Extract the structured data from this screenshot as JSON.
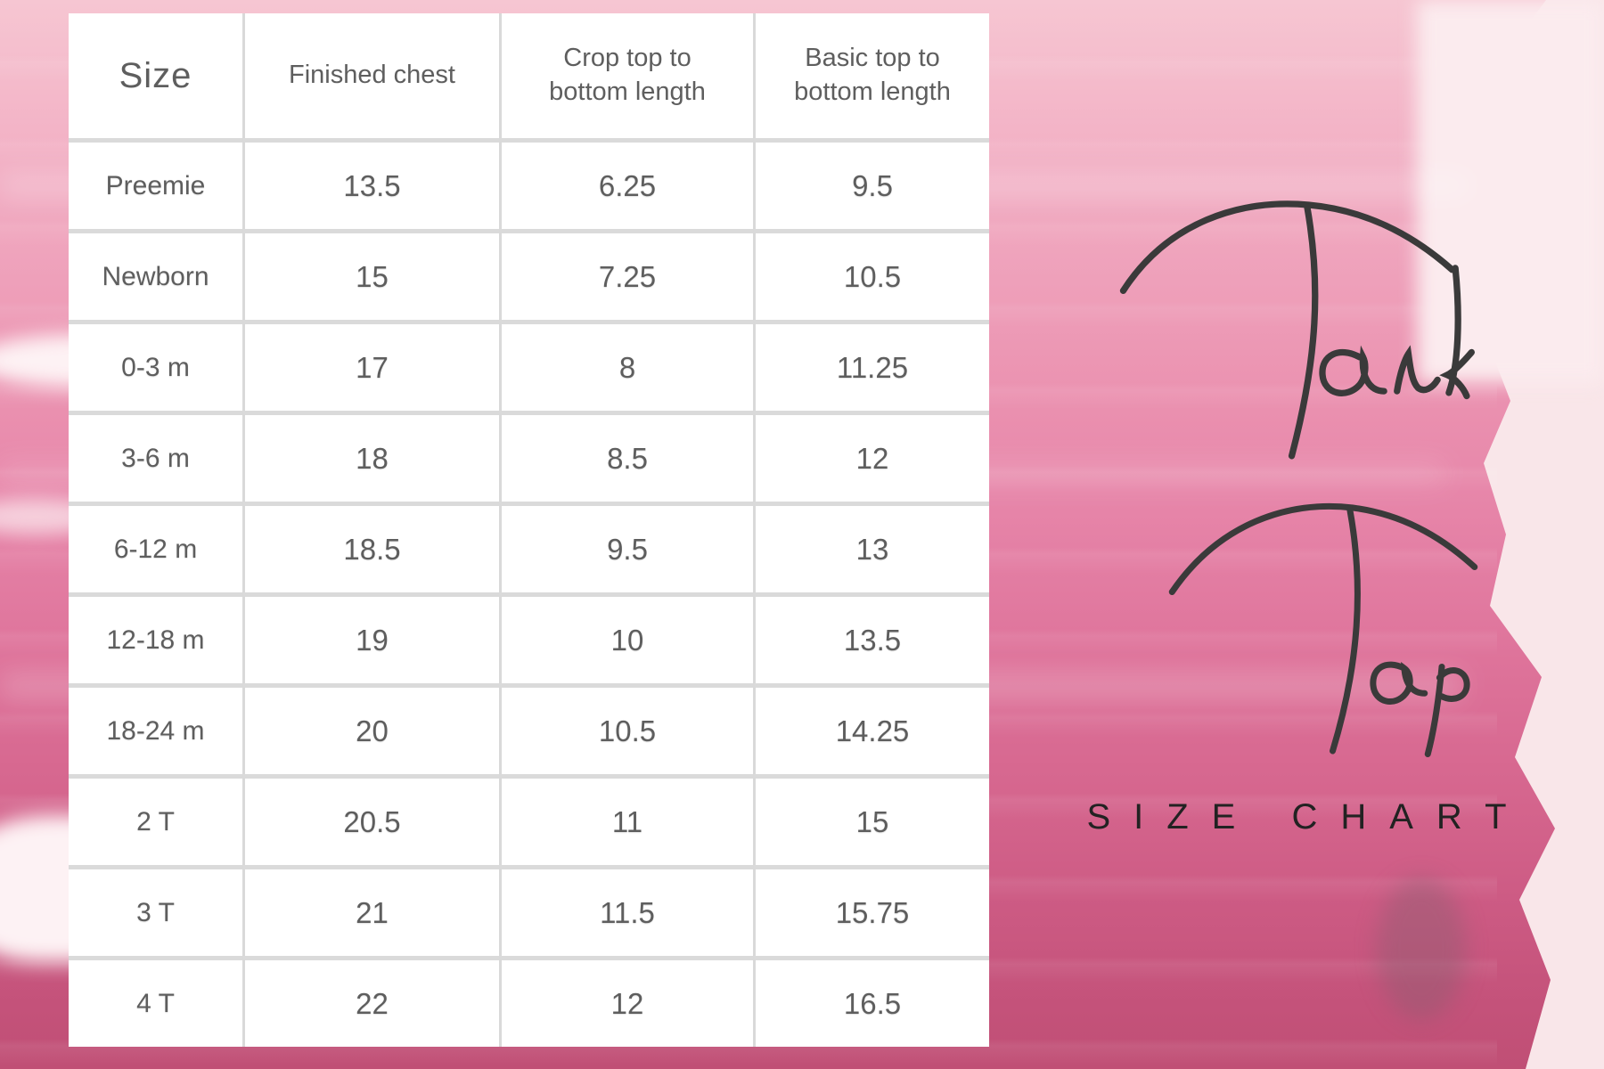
{
  "title": {
    "script_word_1": "Tank",
    "script_word_2": "Top",
    "subtitle": "SIZE CHART"
  },
  "chart_data": {
    "type": "table",
    "title": "Tank Top Size Chart",
    "columns": [
      "Size",
      "Finished chest",
      "Crop top to bottom length",
      "Basic top to bottom length"
    ],
    "rows": [
      [
        "Preemie",
        "13.5",
        "6.25",
        "9.5"
      ],
      [
        "Newborn",
        "15",
        "7.25",
        "10.5"
      ],
      [
        "0-3 m",
        "17",
        "8",
        "11.25"
      ],
      [
        "3-6 m",
        "18",
        "8.5",
        "12"
      ],
      [
        "6-12 m",
        "18.5",
        "9.5",
        "13"
      ],
      [
        "12-18 m",
        "19",
        "10",
        "13.5"
      ],
      [
        "18-24 m",
        "20",
        "10.5",
        "14.25"
      ],
      [
        "2 T",
        "20.5",
        "11",
        "15"
      ],
      [
        "3 T",
        "21",
        "11.5",
        "15.75"
      ],
      [
        "4 T",
        "22",
        "12",
        "16.5"
      ]
    ]
  },
  "colors": {
    "wash_top": "#f6c6d2",
    "wash_bottom": "#c04f75",
    "background_pale": "#f9e6e9",
    "card": "#ffffff",
    "grid_line": "#d9d9d9",
    "table_text": "#5e5e5e",
    "script_ink": "#3a3a3a",
    "subtitle_text": "#222222"
  }
}
